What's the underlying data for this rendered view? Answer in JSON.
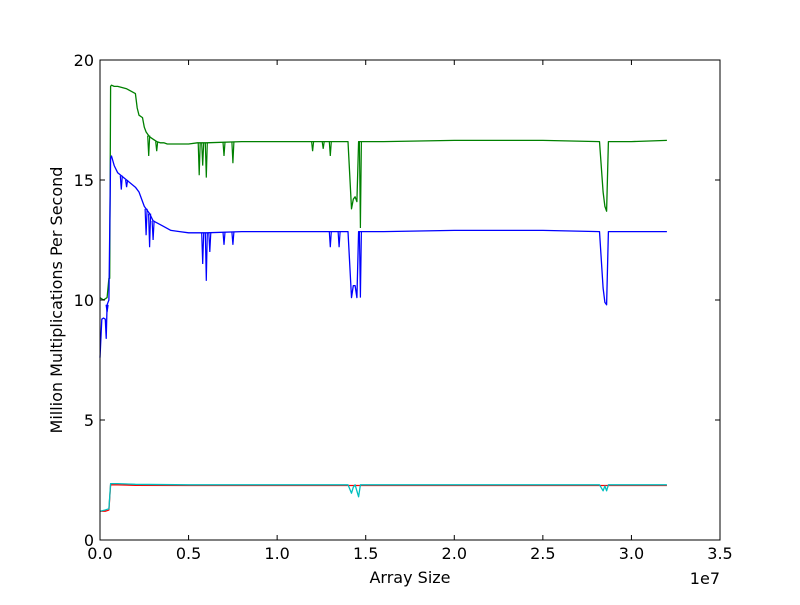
{
  "chart_data": {
    "type": "line",
    "title": "",
    "xlabel": "Array Size",
    "ylabel": "Million Multiplications Per Second",
    "x_offset_label": "1e7",
    "xlim": [
      0,
      3.5
    ],
    "ylim": [
      0,
      20
    ],
    "x_ticks": [
      0,
      0.5,
      1.0,
      1.5,
      2.0,
      2.5,
      3.0,
      3.5
    ],
    "x_tick_labels": [
      "0.0",
      "0.5",
      "1.0",
      "1.5",
      "2.0",
      "2.5",
      "3.0",
      "3.5"
    ],
    "y_ticks": [
      0,
      5,
      10,
      15,
      20
    ],
    "y_tick_labels": [
      "0",
      "5",
      "10",
      "15",
      "20"
    ],
    "grid": false,
    "legend": "none",
    "series": [
      {
        "color": "#008000",
        "x": [
          0.0,
          0.02,
          0.04,
          0.05,
          0.055,
          0.06,
          0.065,
          0.08,
          0.1,
          0.15,
          0.2,
          0.21,
          0.22,
          0.24,
          0.25,
          0.26,
          0.27,
          0.28,
          0.3,
          0.32,
          0.34,
          0.36,
          0.38,
          0.4,
          0.45,
          0.5,
          0.55,
          0.6,
          0.8,
          1.0,
          1.2,
          1.4,
          1.42,
          1.43,
          1.44,
          1.45,
          1.46,
          1.47,
          1.6,
          2.0,
          2.5,
          2.82,
          2.84,
          2.85,
          2.86,
          2.87,
          2.9,
          3.0,
          3.2
        ],
        "y": [
          10.1,
          10.0,
          10.1,
          10.9,
          10.9,
          18.9,
          18.95,
          18.9,
          18.9,
          18.8,
          18.6,
          18.0,
          17.7,
          17.6,
          17.2,
          17.0,
          16.9,
          16.8,
          16.7,
          16.6,
          16.55,
          16.55,
          16.5,
          16.5,
          16.5,
          16.5,
          16.55,
          16.55,
          16.6,
          16.6,
          16.6,
          16.6,
          13.8,
          14.2,
          14.3,
          14.1,
          16.6,
          16.6,
          16.6,
          16.65,
          16.65,
          16.6,
          14.5,
          13.9,
          13.7,
          16.6,
          16.6,
          16.6,
          16.65
        ],
        "dips": [
          [
            0.275,
            16.0
          ],
          [
            0.32,
            16.2
          ],
          [
            0.56,
            15.2
          ],
          [
            0.58,
            15.6
          ],
          [
            0.6,
            15.1
          ],
          [
            0.7,
            16.0
          ],
          [
            0.75,
            15.7
          ],
          [
            1.2,
            16.2
          ],
          [
            1.26,
            16.3
          ],
          [
            1.3,
            16.0
          ],
          [
            1.47,
            13.0
          ]
        ]
      },
      {
        "color": "#0000ff",
        "x": [
          0.0,
          0.01,
          0.02,
          0.03,
          0.035,
          0.04,
          0.05,
          0.06,
          0.065,
          0.08,
          0.1,
          0.15,
          0.2,
          0.22,
          0.25,
          0.28,
          0.3,
          0.35,
          0.4,
          0.45,
          0.5,
          0.55,
          0.6,
          0.8,
          1.0,
          1.2,
          1.4,
          1.42,
          1.43,
          1.44,
          1.45,
          1.46,
          1.47,
          1.6,
          2.0,
          2.5,
          2.82,
          2.84,
          2.85,
          2.86,
          2.87,
          2.9,
          3.0,
          3.2
        ],
        "y": [
          7.6,
          9.2,
          9.25,
          9.2,
          8.4,
          9.8,
          10.0,
          15.9,
          16.0,
          15.6,
          15.3,
          15.0,
          14.7,
          14.5,
          13.9,
          13.6,
          13.3,
          13.1,
          12.9,
          12.85,
          12.8,
          12.8,
          12.8,
          12.85,
          12.85,
          12.85,
          12.85,
          10.1,
          10.6,
          10.6,
          10.1,
          12.85,
          12.85,
          12.85,
          12.9,
          12.9,
          12.85,
          10.5,
          9.9,
          9.8,
          12.85,
          12.85,
          12.85,
          12.85
        ],
        "dips": [
          [
            0.04,
            9.5
          ],
          [
            0.12,
            14.6
          ],
          [
            0.15,
            14.7
          ],
          [
            0.26,
            12.7
          ],
          [
            0.28,
            12.2
          ],
          [
            0.3,
            12.5
          ],
          [
            0.58,
            11.5
          ],
          [
            0.6,
            10.8
          ],
          [
            0.62,
            12.0
          ],
          [
            0.7,
            12.3
          ],
          [
            0.75,
            12.3
          ],
          [
            1.3,
            12.2
          ],
          [
            1.35,
            12.2
          ],
          [
            1.47,
            10.1
          ]
        ]
      },
      {
        "color": "#ff0000",
        "x": [
          0.0,
          0.03,
          0.05,
          0.06,
          0.1,
          0.2,
          0.5,
          1.0,
          1.5,
          2.0,
          2.5,
          3.0,
          3.2
        ],
        "y": [
          1.2,
          1.2,
          1.25,
          2.3,
          2.3,
          2.28,
          2.27,
          2.27,
          2.27,
          2.27,
          2.27,
          2.27,
          2.27
        ],
        "dips": []
      },
      {
        "color": "#00bfbf",
        "x": [
          0.0,
          0.03,
          0.05,
          0.06,
          0.1,
          0.2,
          0.5,
          1.0,
          1.4,
          1.42,
          1.43,
          1.44,
          1.46,
          1.47,
          2.0,
          2.5,
          2.82,
          2.84,
          2.85,
          2.86,
          2.87,
          3.0,
          3.2
        ],
        "y": [
          1.2,
          1.25,
          1.3,
          2.35,
          2.35,
          2.32,
          2.3,
          2.3,
          2.3,
          1.95,
          2.2,
          2.3,
          1.8,
          2.3,
          2.3,
          2.3,
          2.3,
          2.05,
          2.25,
          2.05,
          2.3,
          2.3,
          2.3
        ],
        "dips": []
      }
    ]
  }
}
